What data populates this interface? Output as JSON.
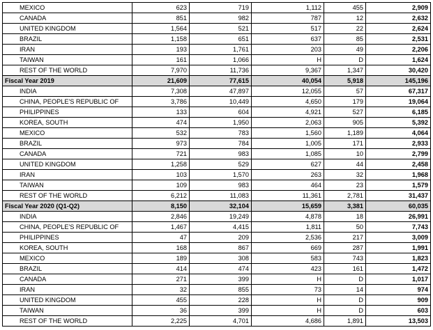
{
  "rows": [
    {
      "type": "country",
      "name": "MEXICO",
      "v1": "623",
      "v2": "719",
      "v3": "1,112",
      "v4": "455",
      "total": "2,909"
    },
    {
      "type": "country",
      "name": "CANADA",
      "v1": "851",
      "v2": "982",
      "v3": "787",
      "v4": "12",
      "total": "2,632"
    },
    {
      "type": "country",
      "name": "UNITED KINGDOM",
      "v1": "1,564",
      "v2": "521",
      "v3": "517",
      "v4": "22",
      "total": "2,624"
    },
    {
      "type": "country",
      "name": "BRAZIL",
      "v1": "1,158",
      "v2": "651",
      "v3": "637",
      "v4": "85",
      "total": "2,531"
    },
    {
      "type": "country",
      "name": "IRAN",
      "v1": "193",
      "v2": "1,761",
      "v3": "203",
      "v4": "49",
      "total": "2,206"
    },
    {
      "type": "country",
      "name": "TAIWAN",
      "v1": "161",
      "v2": "1,066",
      "v3": "H",
      "v4": "D",
      "total": "1,624"
    },
    {
      "type": "country",
      "name": "REST OF THE WORLD",
      "v1": "7,970",
      "v2": "11,736",
      "v3": "9,367",
      "v4": "1,347",
      "total": "30,420"
    },
    {
      "type": "fy",
      "name": "Fiscal Year 2019",
      "v1": "21,609",
      "v2": "77,615",
      "v3": "40,054",
      "v4": "5,918",
      "total": "145,196"
    },
    {
      "type": "country",
      "name": "INDIA",
      "v1": "7,308",
      "v2": "47,897",
      "v3": "12,055",
      "v4": "57",
      "total": "67,317"
    },
    {
      "type": "country",
      "name": "CHINA, PEOPLE'S REPUBLIC OF",
      "v1": "3,786",
      "v2": "10,449",
      "v3": "4,650",
      "v4": "179",
      "total": "19,064"
    },
    {
      "type": "country",
      "name": "PHILIPPINES",
      "v1": "133",
      "v2": "604",
      "v3": "4,921",
      "v4": "527",
      "total": "6,185"
    },
    {
      "type": "country",
      "name": "KOREA, SOUTH",
      "v1": "474",
      "v2": "1,950",
      "v3": "2,063",
      "v4": "905",
      "total": "5,392"
    },
    {
      "type": "country",
      "name": "MEXICO",
      "v1": "532",
      "v2": "783",
      "v3": "1,560",
      "v4": "1,189",
      "total": "4,064"
    },
    {
      "type": "country",
      "name": "BRAZIL",
      "v1": "973",
      "v2": "784",
      "v3": "1,005",
      "v4": "171",
      "total": "2,933"
    },
    {
      "type": "country",
      "name": "CANADA",
      "v1": "721",
      "v2": "983",
      "v3": "1,085",
      "v4": "10",
      "total": "2,799"
    },
    {
      "type": "country",
      "name": "UNITED KINGDOM",
      "v1": "1,258",
      "v2": "529",
      "v3": "627",
      "v4": "44",
      "total": "2,458"
    },
    {
      "type": "country",
      "name": "IRAN",
      "v1": "103",
      "v2": "1,570",
      "v3": "263",
      "v4": "32",
      "total": "1,968"
    },
    {
      "type": "country",
      "name": "TAIWAN",
      "v1": "109",
      "v2": "983",
      "v3": "464",
      "v4": "23",
      "total": "1,579"
    },
    {
      "type": "country",
      "name": "REST OF THE WORLD",
      "v1": "6,212",
      "v2": "11,083",
      "v3": "11,361",
      "v4": "2,781",
      "total": "31,437"
    },
    {
      "type": "fy",
      "name": "Fiscal Year 2020 (Q1-Q2)",
      "v1": "8,150",
      "v2": "32,104",
      "v3": "15,659",
      "v4": "3,381",
      "total": "60,035"
    },
    {
      "type": "country",
      "name": "INDIA",
      "v1": "2,846",
      "v2": "19,249",
      "v3": "4,878",
      "v4": "18",
      "total": "26,991"
    },
    {
      "type": "country",
      "name": "CHINA, PEOPLE'S REPUBLIC OF",
      "v1": "1,467",
      "v2": "4,415",
      "v3": "1,811",
      "v4": "50",
      "total": "7,743"
    },
    {
      "type": "country",
      "name": "PHILIPPINES",
      "v1": "47",
      "v2": "209",
      "v3": "2,536",
      "v4": "217",
      "total": "3,009"
    },
    {
      "type": "country",
      "name": "KOREA, SOUTH",
      "v1": "168",
      "v2": "867",
      "v3": "669",
      "v4": "287",
      "total": "1,991"
    },
    {
      "type": "country",
      "name": "MEXICO",
      "v1": "189",
      "v2": "308",
      "v3": "583",
      "v4": "743",
      "total": "1,823"
    },
    {
      "type": "country",
      "name": "BRAZIL",
      "v1": "414",
      "v2": "474",
      "v3": "423",
      "v4": "161",
      "total": "1,472"
    },
    {
      "type": "country",
      "name": "CANADA",
      "v1": "271",
      "v2": "399",
      "v3": "H",
      "v4": "D",
      "total": "1,017"
    },
    {
      "type": "country",
      "name": "IRAN",
      "v1": "32",
      "v2": "855",
      "v3": "73",
      "v4": "14",
      "total": "974"
    },
    {
      "type": "country",
      "name": "UNITED KINGDOM",
      "v1": "455",
      "v2": "228",
      "v3": "H",
      "v4": "D",
      "total": "909"
    },
    {
      "type": "country",
      "name": "TAIWAN",
      "v1": "36",
      "v2": "399",
      "v3": "H",
      "v4": "D",
      "total": "603"
    },
    {
      "type": "country",
      "name": "REST OF THE WORLD",
      "v1": "2,225",
      "v2": "4,701",
      "v3": "4,686",
      "v4": "1,891",
      "total": "13,503"
    }
  ]
}
